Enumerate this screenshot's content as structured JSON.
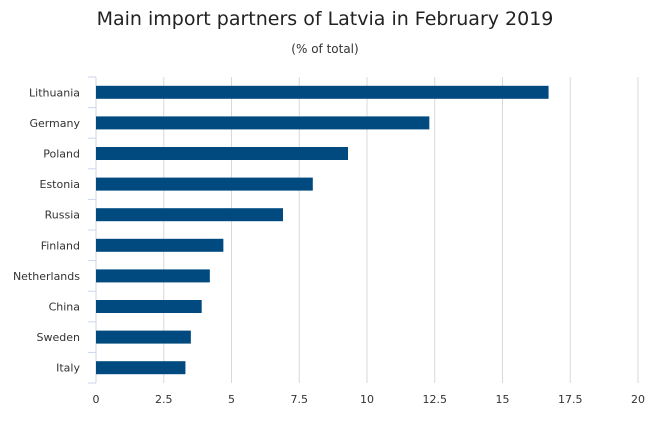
{
  "chart_data": {
    "type": "bar",
    "orientation": "horizontal",
    "title": "Main import partners of Latvia in February 2019",
    "subtitle": "(% of total)",
    "categories": [
      "Lithuania",
      "Germany",
      "Poland",
      "Estonia",
      "Russia",
      "Finland",
      "Netherlands",
      "China",
      "Sweden",
      "Italy"
    ],
    "values": [
      16.7,
      12.3,
      9.3,
      8.0,
      6.9,
      4.7,
      4.2,
      3.9,
      3.5,
      3.3
    ],
    "xlim": [
      0,
      20
    ],
    "xticks": [
      "0",
      "2.5",
      "5",
      "7.5",
      "10",
      "12.5",
      "15",
      "17.5",
      "20"
    ],
    "grid": true,
    "bar_color": "#004a7f"
  }
}
